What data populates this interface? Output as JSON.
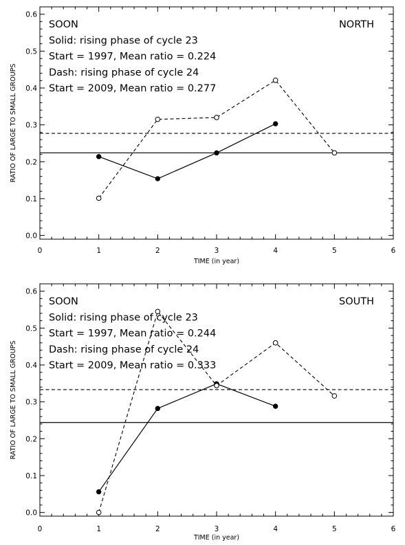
{
  "chart_data": [
    {
      "type": "line",
      "panel": "top",
      "xlabel": "TIME (in year)",
      "ylabel": "RATIO OF LARGE TO SMALL GROUPS",
      "xlim": [
        0,
        6
      ],
      "ylim": [
        -0.01,
        0.62
      ],
      "xticks": [
        0,
        1,
        2,
        3,
        4,
        5,
        6
      ],
      "yticks": [
        0.0,
        0.1,
        0.2,
        0.3,
        0.4,
        0.5,
        0.6
      ],
      "ytick_labels": [
        "0.0",
        "0.1",
        "0.2",
        "0.3",
        "0.4",
        "0.5",
        "0.6"
      ],
      "annotations": {
        "source": "SOON",
        "hemisphere": "NORTH",
        "solid_desc": "Solid: rising phase of cycle 23",
        "solid_start": "Start = 1997, Mean ratio = 0.224",
        "dash_desc": "Dash: rising phase of cycle 24",
        "dash_start": "Start = 2009, Mean ratio = 0.277"
      },
      "series": [
        {
          "style": "solid",
          "marker": "filled-circle",
          "x": [
            1,
            2,
            3,
            4
          ],
          "values": [
            0.214,
            0.154,
            0.224,
            0.303
          ]
        },
        {
          "style": "dashed",
          "marker": "open-circle",
          "x": [
            1,
            2,
            3,
            4,
            5
          ],
          "values": [
            0.101,
            0.315,
            0.32,
            0.421,
            0.224
          ]
        }
      ],
      "mean_lines": [
        {
          "style": "solid",
          "value": 0.224
        },
        {
          "style": "dashed",
          "value": 0.277
        }
      ]
    },
    {
      "type": "line",
      "panel": "bottom",
      "xlabel": "TIME (in year)",
      "ylabel": "RATIO OF LARGE TO SMALL GROUPS",
      "xlim": [
        0,
        6
      ],
      "ylim": [
        -0.01,
        0.62
      ],
      "xticks": [
        0,
        1,
        2,
        3,
        4,
        5,
        6
      ],
      "yticks": [
        0.0,
        0.1,
        0.2,
        0.3,
        0.4,
        0.5,
        0.6
      ],
      "ytick_labels": [
        "0.0",
        "0.1",
        "0.2",
        "0.3",
        "0.4",
        "0.5",
        "0.6"
      ],
      "annotations": {
        "source": "SOON",
        "hemisphere": "SOUTH",
        "solid_desc": "Solid: rising phase of cycle 23",
        "solid_start": "Start = 1997, Mean ratio = 0.244",
        "dash_desc": "Dash: rising phase of cycle 24",
        "dash_start": "Start = 2009, Mean ratio = 0.333"
      },
      "series": [
        {
          "style": "solid",
          "marker": "filled-circle",
          "x": [
            1,
            2,
            3,
            4
          ],
          "values": [
            0.056,
            0.282,
            0.349,
            0.288
          ]
        },
        {
          "style": "dashed",
          "marker": "open-circle",
          "x": [
            1,
            2,
            3,
            4,
            5
          ],
          "values": [
            0.0,
            0.545,
            0.344,
            0.46,
            0.316
          ]
        }
      ],
      "mean_lines": [
        {
          "style": "solid",
          "value": 0.244
        },
        {
          "style": "dashed",
          "value": 0.333
        }
      ]
    }
  ]
}
